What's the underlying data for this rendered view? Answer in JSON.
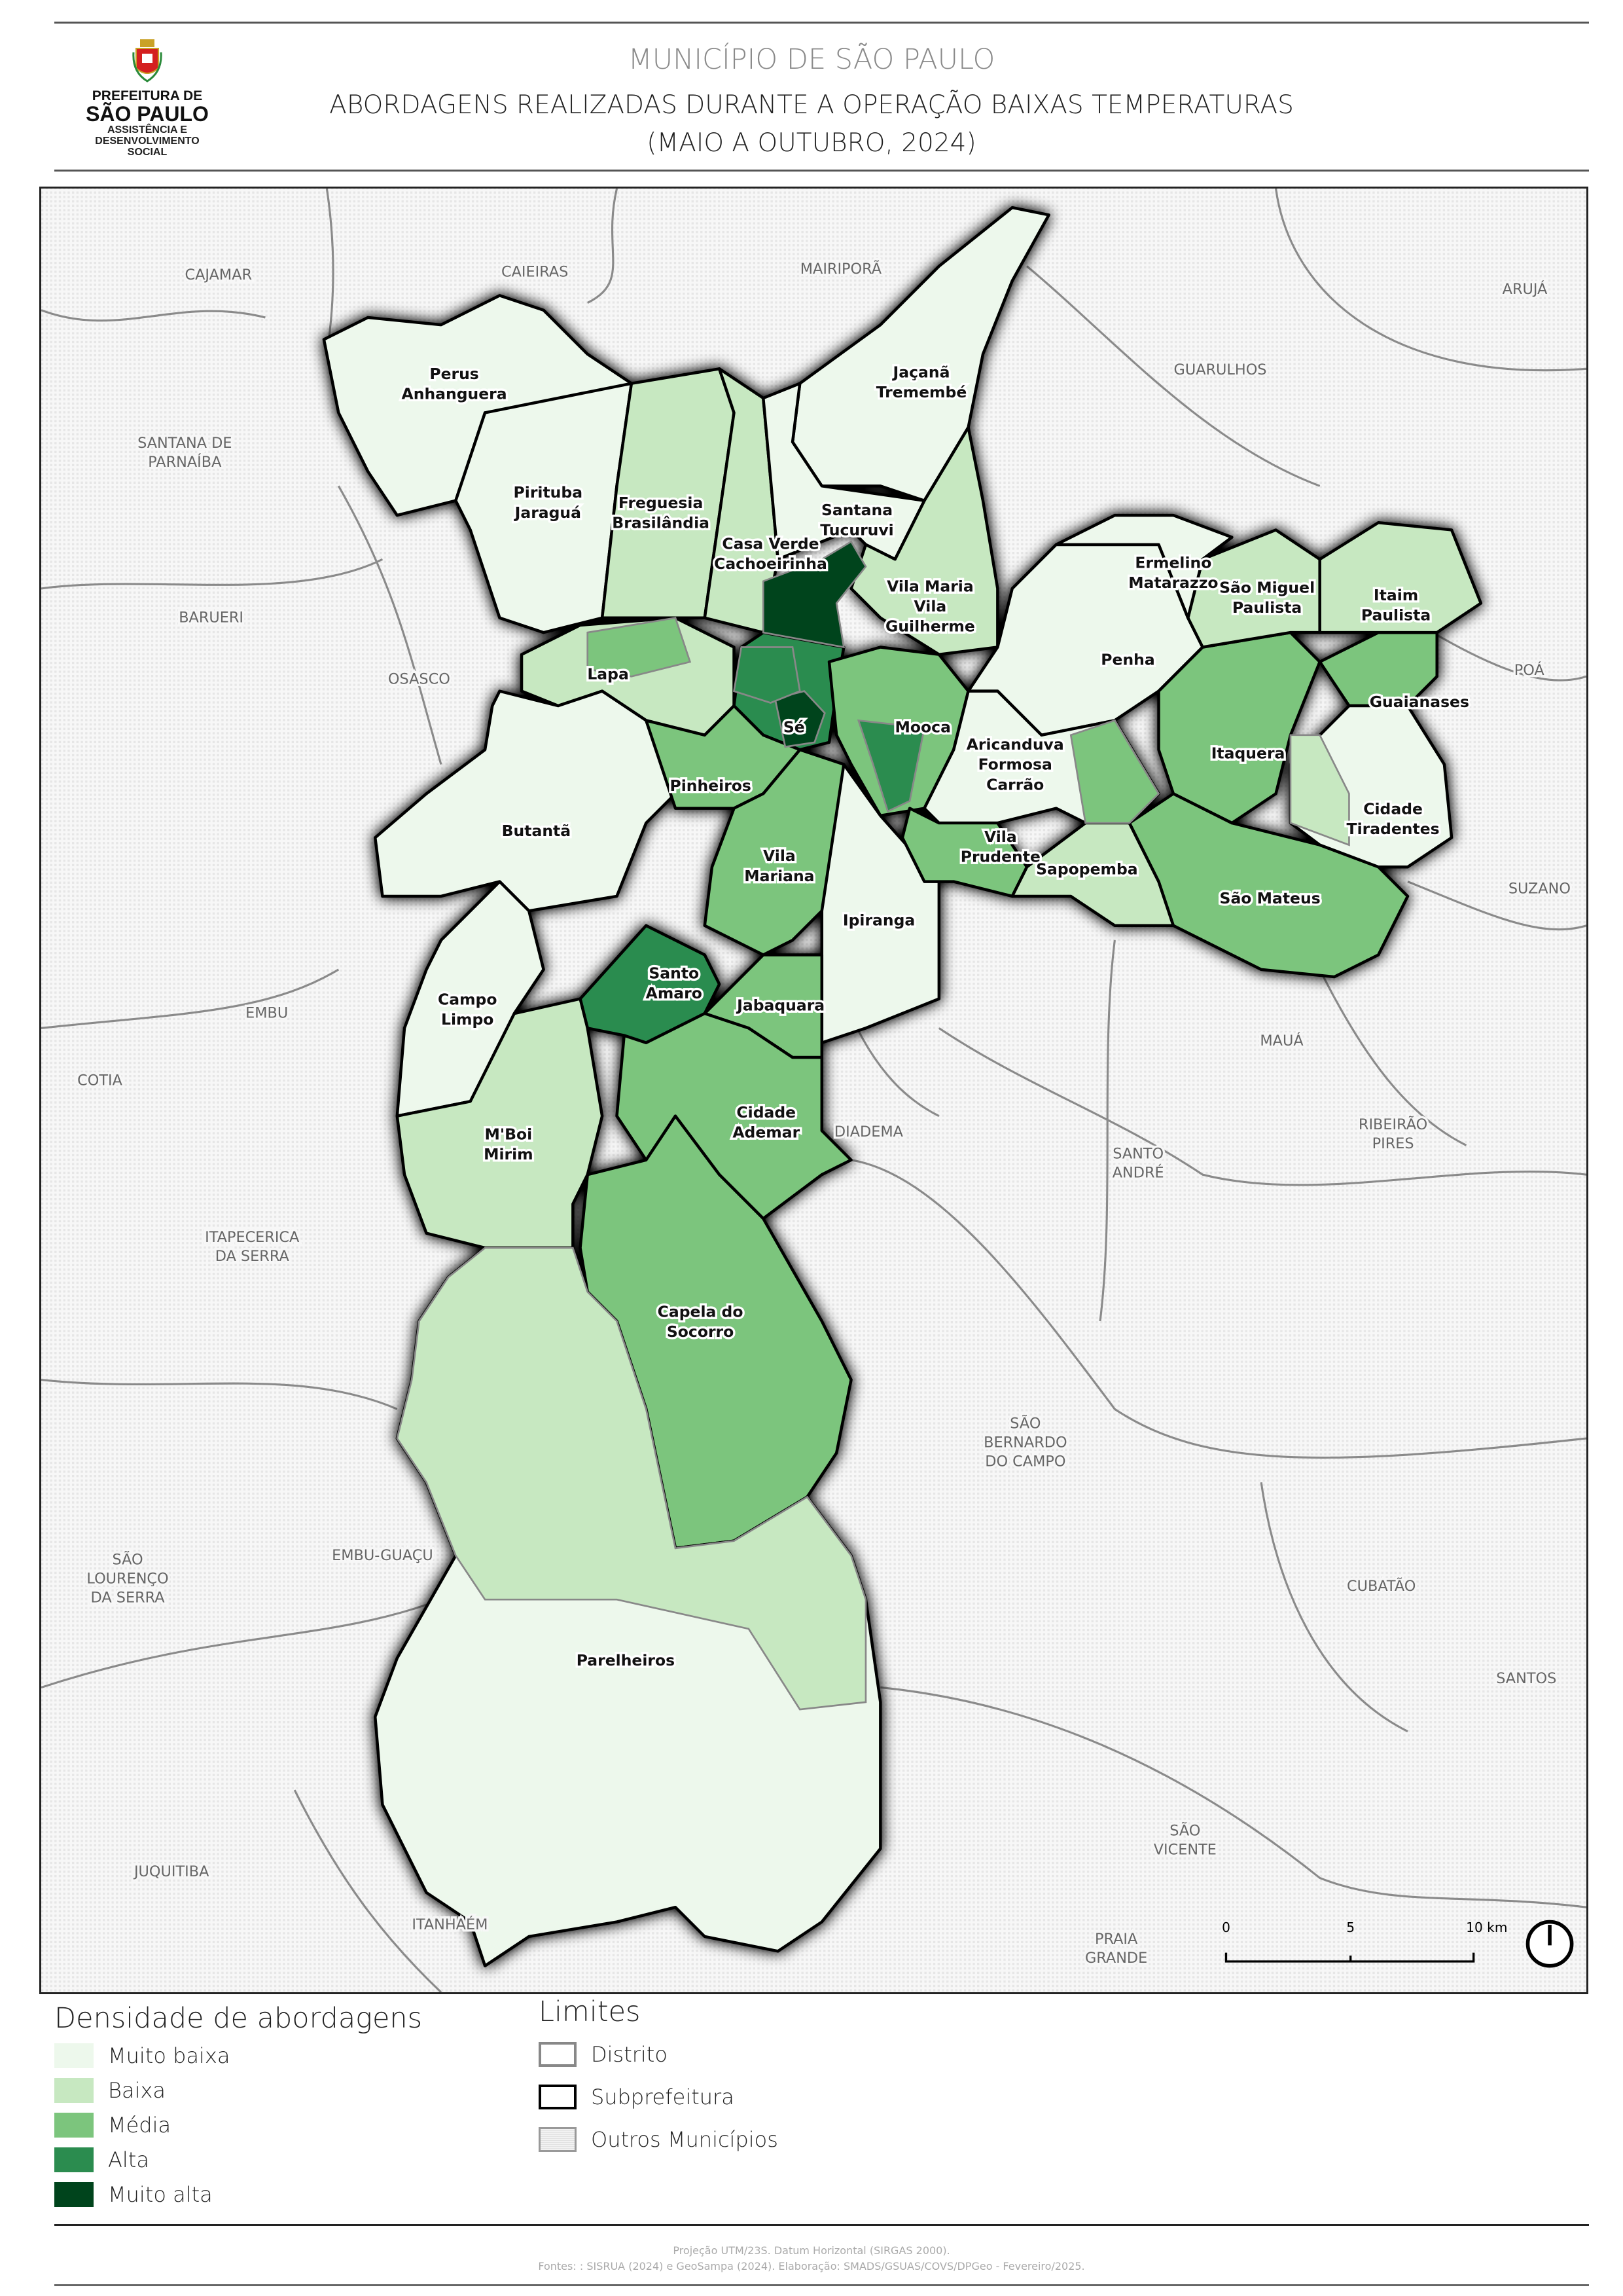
{
  "header": {
    "logo": {
      "line1": "PREFEITURA DE",
      "line2": "SÃO PAULO",
      "line3": "ASSISTÊNCIA E",
      "line4": "DESENVOLVIMENTO",
      "line5": "SOCIAL"
    },
    "title": "MUNICÍPIO DE SÃO PAULO",
    "subtitle": "ABORDAGENS REALIZADAS DURANTE A OPERAÇÃO BAIXAS TEMPERATURAS",
    "period": "(MAIO A OUTUBRO, 2024)"
  },
  "colors": {
    "Muito baixa": "#edf8ec",
    "Baixa": "#c7e8c1",
    "Média": "#7cc57d",
    "Alta": "#2b8c4f",
    "Muito alta": "#00441c",
    "other_municipalities": "#f2f2f2",
    "district_border": "#888888",
    "subprefeitura_border": "#000000"
  },
  "subprefeituras": [
    {
      "label": [
        "Perus",
        "Anhanguera"
      ],
      "density": "Muito baixa"
    },
    {
      "label": [
        "Pirituba",
        "Jaraguá"
      ],
      "density": "Muito baixa"
    },
    {
      "label": [
        "Freguesia",
        "Brasilândia"
      ],
      "density": "Baixa"
    },
    {
      "label": [
        "Casa Verde",
        "Cachoeirinha"
      ],
      "density": "Baixa"
    },
    {
      "label": [
        "Jaçanã",
        "Tremembé"
      ],
      "density": "Muito baixa"
    },
    {
      "label": [
        "Santana",
        "Tucuruvi"
      ],
      "density": "Muito baixa"
    },
    {
      "label": [
        "Vila Maria",
        "Vila",
        "Guilherme"
      ],
      "density": "Baixa"
    },
    {
      "label": [
        "Lapa"
      ],
      "density": "Baixa"
    },
    {
      "label": [
        "Sé"
      ],
      "density": "Alta"
    },
    {
      "label": [
        "Butantã"
      ],
      "density": "Muito baixa"
    },
    {
      "label": [
        "Pinheiros"
      ],
      "density": "Média"
    },
    {
      "label": [
        "Vila",
        "Mariana"
      ],
      "density": "Média"
    },
    {
      "label": [
        "Mooca"
      ],
      "density": "Média"
    },
    {
      "label": [
        "Ipiranga"
      ],
      "density": "Muito baixa"
    },
    {
      "label": [
        "Santo",
        "Amaro"
      ],
      "density": "Alta"
    },
    {
      "label": [
        "Jabaquara"
      ],
      "density": "Média"
    },
    {
      "label": [
        "Campo",
        "Limpo"
      ],
      "density": "Muito baixa"
    },
    {
      "label": [
        "M'Boi",
        "Mirim"
      ],
      "density": "Baixa"
    },
    {
      "label": [
        "Cidade",
        "Ademar"
      ],
      "density": "Média"
    },
    {
      "label": [
        "Capela do",
        "Socorro"
      ],
      "density": "Média"
    },
    {
      "label": [
        "Parelheiros"
      ],
      "density": "Muito baixa"
    },
    {
      "label": [
        "Penha"
      ],
      "density": "Muito baixa"
    },
    {
      "label": [
        "Aricanduva",
        "Formosa",
        "Carrão"
      ],
      "density": "Muito baixa"
    },
    {
      "label": [
        "Vila",
        "Prudente"
      ],
      "density": "Média"
    },
    {
      "label": [
        "Sapopemba"
      ],
      "density": "Baixa"
    },
    {
      "label": [
        "São Mateus"
      ],
      "density": "Média"
    },
    {
      "label": [
        "Itaquera"
      ],
      "density": "Média"
    },
    {
      "label": [
        "Guaianases"
      ],
      "density": "Média"
    },
    {
      "label": [
        "Cidade",
        "Tiradentes"
      ],
      "density": "Muito baixa"
    },
    {
      "label": [
        "São Miguel",
        "Paulista"
      ],
      "density": "Baixa"
    },
    {
      "label": [
        "Ermelino",
        "Matarazzo"
      ],
      "density": "Muito baixa"
    },
    {
      "label": [
        "Itaim",
        "Paulista"
      ],
      "density": "Baixa"
    }
  ],
  "municipalities": [
    [
      "CAJAMAR"
    ],
    [
      "CAIEIRAS"
    ],
    [
      "MAIRIPORÃ"
    ],
    [
      "ARUJÁ"
    ],
    [
      "GUARULHOS"
    ],
    [
      "SANTANA DE",
      "PARNAÍBA"
    ],
    [
      "BARUERI"
    ],
    [
      "OSASCO"
    ],
    [
      "POÁ"
    ],
    [
      "SUZANO"
    ],
    [
      "EMBU"
    ],
    [
      "COTIA"
    ],
    [
      "MAUÁ"
    ],
    [
      "DIADEMA"
    ],
    [
      "SANTO",
      "ANDRÉ"
    ],
    [
      "RIBEIRÃO",
      "PIRES"
    ],
    [
      "ITAPECERICA",
      "DA SERRA"
    ],
    [
      "SÃO",
      "BERNARDO",
      "DO CAMPO"
    ],
    [
      "SÃO",
      "LOURENÇO",
      "DA SERRA"
    ],
    [
      "EMBU-GUAÇU"
    ],
    [
      "CUBATÃO"
    ],
    [
      "SANTOS"
    ],
    [
      "SÃO",
      "VICENTE"
    ],
    [
      "JUQUITIBA"
    ],
    [
      "ITANHAÉM"
    ],
    [
      "PRAIA",
      "GRANDE"
    ]
  ],
  "scale_bar": {
    "labels": [
      "0",
      "5",
      "10 km"
    ]
  },
  "legend": {
    "density_title": "Densidade de abordagens",
    "density_items": [
      "Muito baixa",
      "Baixa",
      "Média",
      "Alta",
      "Muito alta"
    ],
    "limits_title": "Limites",
    "limits_items": [
      "Distrito",
      "Subprefeitura",
      "Outros Municípios"
    ]
  },
  "footer": {
    "line1": "Projeção UTM/23S. Datum Horizontal (SIRGAS 2000).",
    "line2": "Fontes: : SISRUA (2024) e GeoSampa (2024). Elaboração: SMADS/GSUAS/COVS/DPGeo - Fevereiro/2025."
  }
}
